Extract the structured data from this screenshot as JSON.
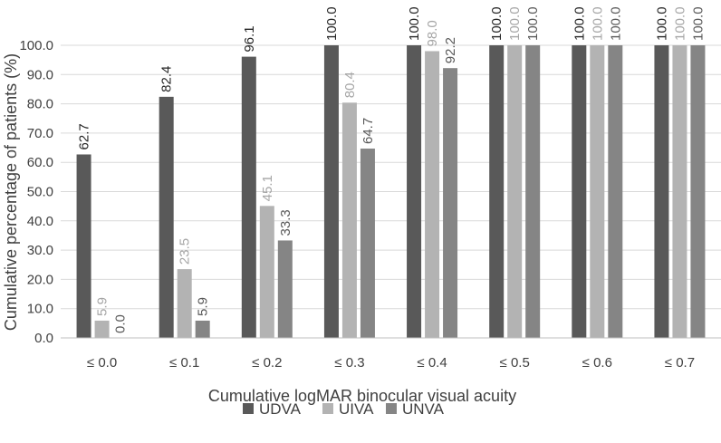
{
  "chart_data": {
    "type": "bar",
    "title": "",
    "xlabel": "Cumulative logMAR binocular visual acuity",
    "ylabel": "Cumulative percentage of patients (%)",
    "ylim": [
      0,
      100
    ],
    "yticks": [
      "0.0",
      "10.0",
      "20.0",
      "30.0",
      "40.0",
      "50.0",
      "60.0",
      "70.0",
      "80.0",
      "90.0",
      "100.0"
    ],
    "categories": [
      "≤ 0.0",
      "≤ 0.1",
      "≤ 0.2",
      "≤ 0.3",
      "≤ 0.4",
      "≤ 0.5",
      "≤ 0.6",
      "≤ 0.7"
    ],
    "series": [
      {
        "name": "UDVA",
        "color": "#595959",
        "label_color": "#262626",
        "values": [
          62.7,
          82.4,
          96.1,
          100.0,
          100.0,
          100.0,
          100.0,
          100.0
        ],
        "labels": [
          "62.7",
          "82.4",
          "96.1",
          "100.0",
          "100.0",
          "100.0",
          "100.0",
          "100.0"
        ]
      },
      {
        "name": "UIVA",
        "color": "#b3b3b3",
        "label_color": "#a6a6a6",
        "values": [
          5.9,
          23.5,
          45.1,
          80.4,
          98.0,
          100.0,
          100.0,
          100.0
        ],
        "labels": [
          "5.9",
          "23.5",
          "45.1",
          "80.4",
          "98.0",
          "100.0",
          "100.0",
          "100.0"
        ]
      },
      {
        "name": "UNVA",
        "color": "#858585",
        "label_color": "#595959",
        "values": [
          0.0,
          5.9,
          33.3,
          64.7,
          92.2,
          100.0,
          100.0,
          100.0
        ],
        "labels": [
          "0.0",
          "5.9",
          "33.3",
          "64.7",
          "92.2",
          "100.0",
          "100.0",
          "100.0"
        ]
      }
    ],
    "grid": true,
    "legend_position": "bottom",
    "data_labels": "rotated above bars"
  }
}
